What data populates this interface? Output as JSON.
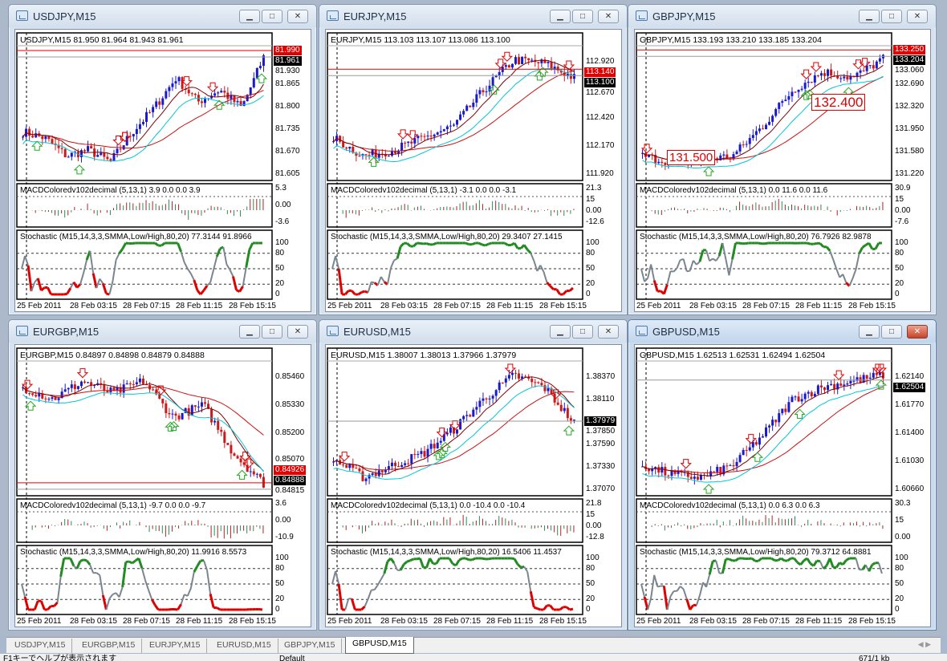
{
  "windows": [
    {
      "title": "USDJPY,M15",
      "header": "USDJPY,M15  81.950 81.964 81.943 81.961",
      "prices": [
        "81.930",
        "81.865",
        "81.800",
        "81.735",
        "81.670",
        "81.605"
      ],
      "ask": "81.990",
      "bid": "81.961",
      "macd_label": "MACDColoredv102decimal (5,13,1) 3.9 0.0 0.0 3.9",
      "macd_scale": [
        "5.3",
        "0.00",
        "-3.6"
      ],
      "stoch_label": "Stochastic (M15,14,3,3,SMMA,Low/High,80,20) 77.3144 91.8966",
      "stoch_scale": [
        "100",
        "80",
        "50",
        "20",
        "0"
      ],
      "times": [
        "25 Feb 2011",
        "28 Feb 03:15",
        "28 Feb 07:15",
        "28 Feb 11:15",
        "28 Feb 15:15"
      ],
      "annotations": []
    },
    {
      "title": "EURJPY,M15",
      "header": "EURJPY,M15  113.103 113.107 113.086 113.100",
      "prices": [
        "112.920",
        "112.670",
        "112.420",
        "112.170",
        "111.920"
      ],
      "ask": "113.140",
      "bid": "113.100",
      "macd_label": "MACDColoredv102decimal (5,13,1) -3.1 0.0 0.0 -3.1",
      "macd_scale": [
        "21.3",
        "15",
        "0.00",
        "-12.6"
      ],
      "stoch_label": "Stochastic (M15,14,3,3,SMMA,Low/High,80,20) 29.3407 27.1415",
      "stoch_scale": [
        "100",
        "80",
        "50",
        "20",
        "0"
      ],
      "times": [
        "25 Feb 2011",
        "28 Feb 03:15",
        "28 Feb 07:15",
        "28 Feb 11:15",
        "28 Feb 15:15"
      ],
      "annotations": []
    },
    {
      "title": "GBPJPY,M15",
      "header": "GBPJPY,M15  133.193 133.210 133.185 133.204",
      "prices": [
        "133.060",
        "132.690",
        "132.320",
        "131.950",
        "131.580",
        "131.220"
      ],
      "ask": "133.250",
      "bid": "133.204",
      "macd_label": "MACDColoredv102decimal (5,13,1) 0.0 11.6 0.0 11.6",
      "macd_scale": [
        "30.9",
        "15",
        "0.00",
        "-7.6"
      ],
      "stoch_label": "Stochastic (M15,14,3,3,SMMA,Low/High,80,20) 76.7926 82.9878",
      "stoch_scale": [
        "100",
        "80",
        "50",
        "20",
        "0"
      ],
      "times": [
        "25 Feb 2011",
        "28 Feb 03:15",
        "28 Feb 07:15",
        "28 Feb 11:15",
        "28 Feb 15:15"
      ],
      "annotations": [
        "132.400",
        "131.500"
      ]
    },
    {
      "title": "EURGBP,M15",
      "header": "EURGBP,M15  0.84897 0.84898 0.84879 0.84888",
      "prices": [
        "0.85460",
        "0.85330",
        "0.85200",
        "0.85070",
        "0.84815"
      ],
      "ask": "0.84926",
      "bid": "0.84888",
      "macd_label": "MACDColoredv102decimal (5,13,1) -9.7 0.0 0.0 -9.7",
      "macd_scale": [
        "3.6",
        "0.00",
        "-10.9"
      ],
      "stoch_label": "Stochastic (M15,14,3,3,SMMA,Low/High,80,20) 11.9916 8.5573",
      "stoch_scale": [
        "100",
        "80",
        "50",
        "20",
        "0"
      ],
      "times": [
        "25 Feb 2011",
        "28 Feb 03:15",
        "28 Feb 07:15",
        "28 Feb 11:15",
        "28 Feb 15:15"
      ],
      "annotations": []
    },
    {
      "title": "EURUSD,M15",
      "header": "EURUSD,M15  1.38007 1.38013 1.37966 1.37979",
      "prices": [
        "1.38370",
        "1.38110",
        "1.37850",
        "1.37590",
        "1.37330",
        "1.37070"
      ],
      "ask": "",
      "bid": "1.37979",
      "macd_label": "MACDColoredv102decimal (5,13,1) 0.0 -10.4 0.0 -10.4",
      "macd_scale": [
        "21.8",
        "15",
        "0.00",
        "-12.8"
      ],
      "stoch_label": "Stochastic (M15,14,3,3,SMMA,Low/High,80,20) 16.5406 11.4537",
      "stoch_scale": [
        "100",
        "80",
        "50",
        "20",
        "0"
      ],
      "times": [
        "25 Feb 2011",
        "28 Feb 03:15",
        "28 Feb 07:15",
        "28 Feb 11:15",
        "28 Feb 15:15"
      ],
      "annotations": []
    },
    {
      "title": "GBPUSD,M15",
      "header": "GBPUSD,M15  1.62513 1.62531 1.62494 1.62504",
      "prices": [
        "1.62140",
        "1.61770",
        "1.61400",
        "1.61030",
        "1.60660"
      ],
      "ask": "",
      "bid": "1.62504",
      "macd_label": "MACDColoredv102decimal (5,13,1) 0.0 6.3 0.0 6.3",
      "macd_scale": [
        "30.3",
        "15",
        "0.00"
      ],
      "stoch_label": "Stochastic (M15,14,3,3,SMMA,Low/High,80,20) 79.3712 64.8881",
      "stoch_scale": [
        "100",
        "80",
        "50",
        "20",
        "0"
      ],
      "times": [
        "25 Feb 2011",
        "28 Feb 03:15",
        "28 Feb 07:15",
        "28 Feb 11:15",
        "28 Feb 15:15"
      ],
      "annotations": []
    }
  ],
  "active_window": 5,
  "tabs": [
    "USDJPY,M15",
    "EURGBP,M15",
    "EURJPY,M15",
    "EURUSD,M15",
    "GBPJPY,M15",
    "GBPUSD,M15"
  ],
  "active_tab": 5,
  "status": {
    "help": "F1キーでヘルプが表示されます",
    "profile": "Default",
    "traffic": "671/1 kb"
  },
  "colors": {
    "up": "#1a1acc",
    "down": "#cc1a1a",
    "stoch": "#7a8590",
    "stoch_low": "#e00000",
    "stoch_high": "#228b22"
  }
}
